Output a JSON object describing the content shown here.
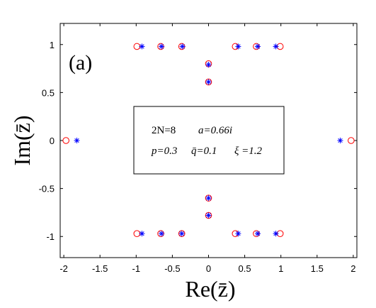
{
  "chart_data": {
    "type": "scatter",
    "panel_label": "(a)",
    "xlabel": "Re(z̄)",
    "ylabel": "Im(z̄)",
    "xlim": [
      -2.05,
      2.05
    ],
    "ylim": [
      -1.22,
      1.22
    ],
    "xticks": [
      -2,
      -1.5,
      -1,
      -0.5,
      0,
      0.5,
      1,
      1.5,
      2
    ],
    "xtick_labels": [
      "-2",
      "-1.5",
      "-1",
      "-0.5",
      "0",
      "0.5",
      "1",
      "1.5",
      "2"
    ],
    "yticks": [
      -1,
      -0.5,
      0,
      0.5,
      1
    ],
    "ytick_labels": [
      "-1",
      "-0.5",
      "0",
      "0.5",
      "1"
    ],
    "grid": false,
    "annotation": {
      "line1": [
        "2N=8",
        "a=0.66i"
      ],
      "line2": [
        "p=0.3",
        "q̄=0.1",
        "ξ =1.2"
      ]
    },
    "series": [
      {
        "marker": "circle",
        "color": "#ff0000",
        "points": [
          [
            -0.99,
            0.98
          ],
          [
            -0.66,
            0.98
          ],
          [
            -0.37,
            0.98
          ],
          [
            0.37,
            0.98
          ],
          [
            0.66,
            0.98
          ],
          [
            0.99,
            0.98
          ],
          [
            0,
            0.8
          ],
          [
            0,
            0.61
          ],
          [
            -1.97,
            0
          ],
          [
            1.97,
            0
          ],
          [
            0,
            -0.6
          ],
          [
            0,
            -0.78
          ],
          [
            -0.99,
            -0.97
          ],
          [
            -0.66,
            -0.97
          ],
          [
            -0.37,
            -0.97
          ],
          [
            0.37,
            -0.97
          ],
          [
            0.66,
            -0.97
          ],
          [
            0.99,
            -0.97
          ]
        ]
      },
      {
        "marker": "asterisk",
        "color": "#0000ff",
        "points": [
          [
            -0.92,
            0.98
          ],
          [
            -0.65,
            0.98
          ],
          [
            -0.36,
            0.98
          ],
          [
            0.41,
            0.98
          ],
          [
            0.68,
            0.98
          ],
          [
            0.93,
            0.98
          ],
          [
            0,
            0.79
          ],
          [
            0,
            0.61
          ],
          [
            -1.82,
            0
          ],
          [
            1.82,
            0
          ],
          [
            0,
            -0.6
          ],
          [
            0,
            -0.78
          ],
          [
            -0.92,
            -0.97
          ],
          [
            -0.65,
            -0.97
          ],
          [
            -0.37,
            -0.97
          ],
          [
            0.41,
            -0.97
          ],
          [
            0.68,
            -0.97
          ],
          [
            0.93,
            -0.97
          ]
        ]
      }
    ]
  }
}
